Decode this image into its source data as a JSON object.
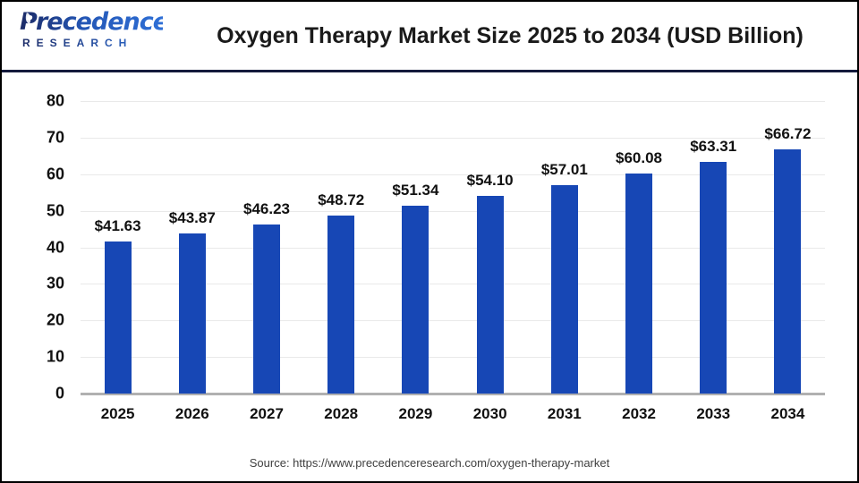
{
  "header": {
    "logo": {
      "line1": "Precedence",
      "line2": "RESEARCH"
    },
    "title": "Oxygen Therapy Market Size 2025 to 2034 (USD Billion)"
  },
  "footer": {
    "source": "Source: https://www.precedenceresearch.com/oxygen-therapy-market"
  },
  "colors": {
    "bar_blue": "#1747b5",
    "divider_navy": "#141a3c",
    "gridline_gray": "#e9e9e9",
    "axis_line_gray": "#b0b0b0",
    "logo_navy": "#1b2a66",
    "logo_blue": "#2e6fd6",
    "text_black": "#111111",
    "source_gray": "#3f3f3f"
  },
  "chart_data": {
    "type": "bar",
    "title": "Oxygen Therapy Market Size 2025 to 2034 (USD Billion)",
    "categories": [
      "2025",
      "2026",
      "2027",
      "2028",
      "2029",
      "2030",
      "2031",
      "2032",
      "2033",
      "2034"
    ],
    "values": [
      41.63,
      43.87,
      46.23,
      48.72,
      51.34,
      54.1,
      57.01,
      60.08,
      63.31,
      66.72
    ],
    "value_labels": [
      "$41.63",
      "$43.87",
      "$46.23",
      "$48.72",
      "$51.34",
      "$54.10",
      "$57.01",
      "$60.08",
      "$63.31",
      "$66.72"
    ],
    "xlabel": "",
    "ylabel": "",
    "ylim": [
      0,
      80
    ],
    "ytick_step": 10,
    "grid": true,
    "legend": null,
    "bar_color": "#1747b5"
  }
}
